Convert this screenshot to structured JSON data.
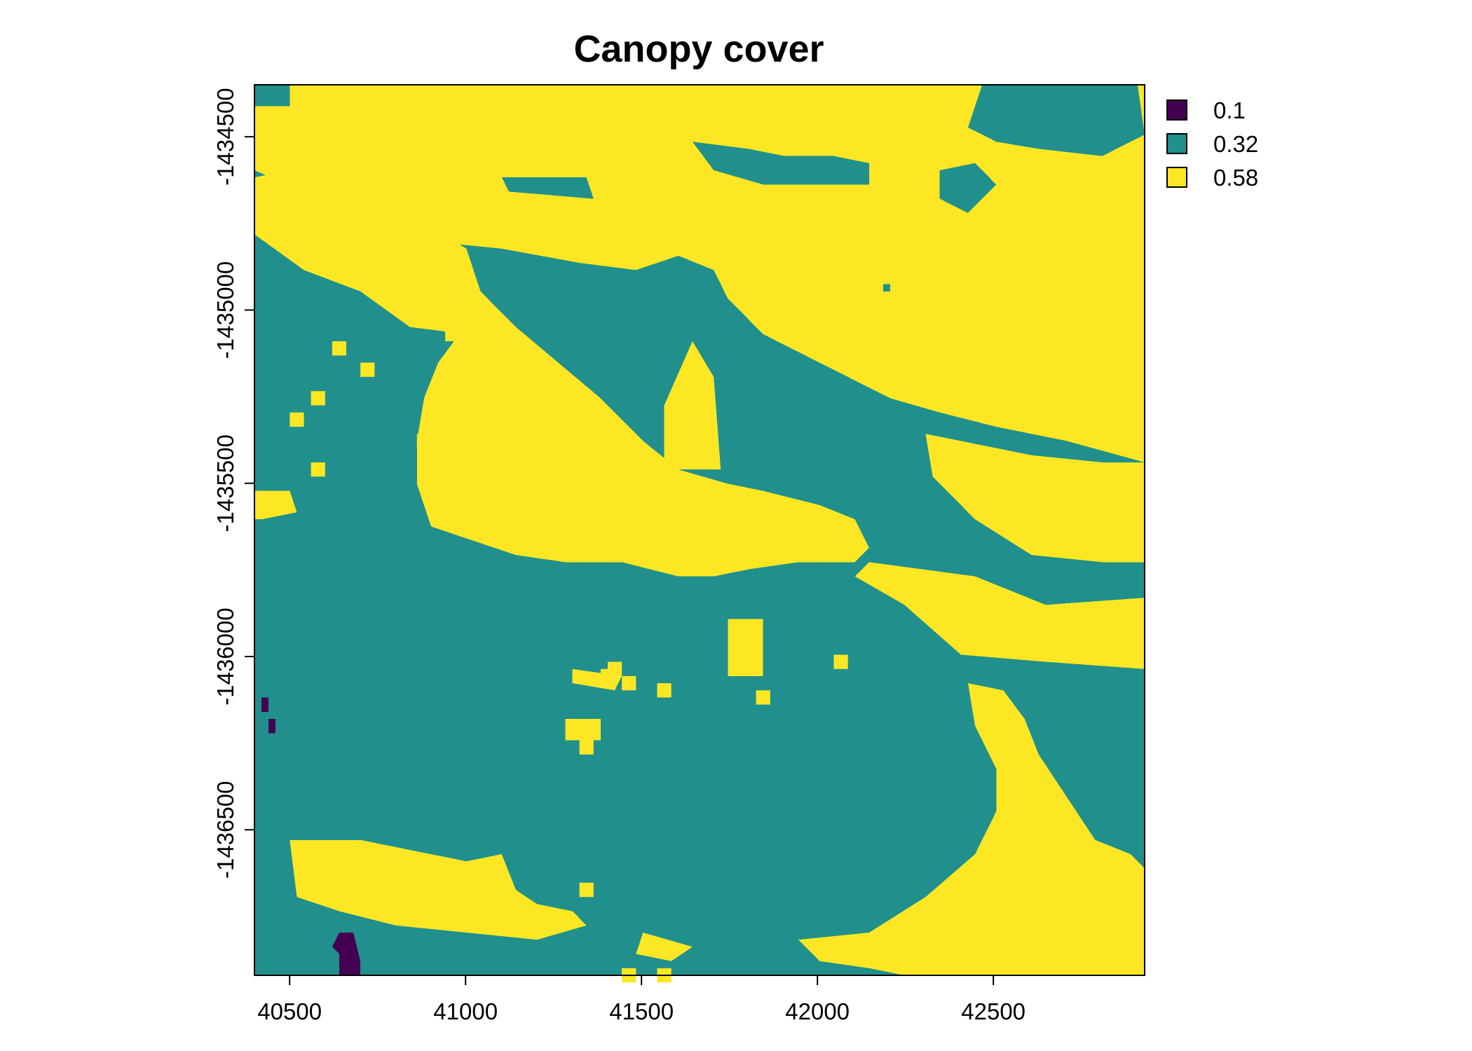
{
  "chart_data": {
    "type": "heatmap",
    "title": "Canopy cover",
    "xlabel": "",
    "ylabel": "",
    "xlim": [
      40400,
      42930
    ],
    "ylim": [
      -1436920,
      -1434350
    ],
    "x_ticks": [
      40500,
      41000,
      41500,
      42000,
      42500
    ],
    "y_ticks": [
      -1434500,
      -1435000,
      -1435500,
      -1436000,
      -1436500
    ],
    "x_tick_labels": [
      "40500",
      "41000",
      "41500",
      "42000",
      "42500"
    ],
    "y_tick_labels": [
      "-1434500",
      "-1435000",
      "-1435500",
      "-1436000",
      "-1436500"
    ],
    "grid": false,
    "legend_position": "top-right, outside plot",
    "classes": [
      {
        "value": 0.1,
        "label": "0.1",
        "color": "#440154"
      },
      {
        "value": 0.32,
        "label": "0.32",
        "color": "#21908C"
      },
      {
        "value": 0.58,
        "label": "0.58",
        "color": "#FDE725"
      }
    ],
    "grid_cells": {
      "ncols": 126,
      "nrows": 125
    },
    "regions_058": [
      [
        [
          40400,
          -1434350
        ],
        [
          40800,
          -1434350
        ],
        [
          41400,
          -1434350
        ],
        [
          42050,
          -1434350
        ],
        [
          42400,
          -1434350
        ],
        [
          42930,
          -1434350
        ],
        [
          42930,
          -1435440
        ],
        [
          42700,
          -1435380
        ],
        [
          42500,
          -1435330
        ],
        [
          42350,
          -1435300
        ],
        [
          42200,
          -1435250
        ],
        [
          42000,
          -1435150
        ],
        [
          41850,
          -1435070
        ],
        [
          41750,
          -1434960
        ],
        [
          41700,
          -1434880
        ],
        [
          41600,
          -1434850
        ],
        [
          41480,
          -1434890
        ],
        [
          41330,
          -1434860
        ],
        [
          41100,
          -1434830
        ],
        [
          40900,
          -1434800
        ],
        [
          40700,
          -1434720
        ],
        [
          40550,
          -1434650
        ],
        [
          40400,
          -1434600
        ]
      ],
      [
        [
          40500,
          -1434600
        ],
        [
          40800,
          -1434700
        ],
        [
          41000,
          -1434820
        ],
        [
          41050,
          -1434950
        ],
        [
          41000,
          -1435060
        ],
        [
          40850,
          -1435050
        ],
        [
          40700,
          -1434950
        ],
        [
          40550,
          -1434880
        ],
        [
          40400,
          -1434780
        ],
        [
          40400,
          -1434620
        ]
      ],
      [
        [
          41050,
          -1434950
        ],
        [
          41150,
          -1435040
        ],
        [
          41270,
          -1435150
        ],
        [
          41380,
          -1435250
        ],
        [
          41500,
          -1435370
        ],
        [
          41600,
          -1435450
        ],
        [
          41750,
          -1435500
        ],
        [
          41850,
          -1435520
        ],
        [
          42000,
          -1435560
        ],
        [
          42100,
          -1435600
        ],
        [
          42150,
          -1435680
        ],
        [
          42100,
          -1435720
        ],
        [
          41950,
          -1435720
        ],
        [
          41800,
          -1435750
        ],
        [
          41700,
          -1435760
        ],
        [
          41600,
          -1435760
        ],
        [
          41450,
          -1435730
        ],
        [
          41280,
          -1435720
        ],
        [
          41150,
          -1435700
        ],
        [
          41020,
          -1435660
        ],
        [
          40900,
          -1435620
        ],
        [
          40870,
          -1435500
        ],
        [
          40870,
          -1435380
        ],
        [
          40880,
          -1435260
        ],
        [
          40930,
          -1435150
        ],
        [
          40990,
          -1435060
        ]
      ],
      [
        [
          41560,
          -1435450
        ],
        [
          41720,
          -1435450
        ],
        [
          41700,
          -1435200
        ],
        [
          41650,
          -1435100
        ],
        [
          41560,
          -1435280
        ]
      ],
      [
        [
          42150,
          -1435720
        ],
        [
          42450,
          -1435770
        ],
        [
          42650,
          -1435860
        ],
        [
          42930,
          -1435840
        ],
        [
          42930,
          -1436030
        ],
        [
          42650,
          -1436020
        ],
        [
          42400,
          -1435990
        ],
        [
          42250,
          -1435850
        ],
        [
          42100,
          -1435760
        ]
      ],
      [
        [
          42300,
          -1435350
        ],
        [
          42600,
          -1435420
        ],
        [
          42800,
          -1435440
        ],
        [
          42930,
          -1435440
        ],
        [
          42930,
          -1435720
        ],
        [
          42800,
          -1435720
        ],
        [
          42600,
          -1435700
        ],
        [
          42450,
          -1435600
        ],
        [
          42320,
          -1435480
        ]
      ],
      [
        [
          42430,
          -1436070
        ],
        [
          42520,
          -1436100
        ],
        [
          42580,
          -1436180
        ],
        [
          42620,
          -1436280
        ],
        [
          42700,
          -1436400
        ],
        [
          42780,
          -1436520
        ],
        [
          42880,
          -1436580
        ],
        [
          42930,
          -1436620
        ],
        [
          42930,
          -1436920
        ],
        [
          42250,
          -1436920
        ],
        [
          42150,
          -1436900
        ],
        [
          42000,
          -1436880
        ],
        [
          41950,
          -1436820
        ],
        [
          42150,
          -1436790
        ],
        [
          42300,
          -1436690
        ],
        [
          42450,
          -1436580
        ],
        [
          42500,
          -1436450
        ],
        [
          42500,
          -1436320
        ],
        [
          42450,
          -1436200
        ]
      ],
      [
        [
          40500,
          -1436520
        ],
        [
          40700,
          -1436520
        ],
        [
          40800,
          -1436560
        ],
        [
          41000,
          -1436590
        ],
        [
          41100,
          -1436580
        ],
        [
          41140,
          -1436670
        ],
        [
          41200,
          -1436720
        ],
        [
          41300,
          -1436740
        ],
        [
          41350,
          -1436780
        ],
        [
          41200,
          -1436820
        ],
        [
          41000,
          -1436790
        ],
        [
          40800,
          -1436770
        ],
        [
          40650,
          -1436740
        ],
        [
          40520,
          -1436700
        ]
      ],
      [
        [
          40400,
          -1435530
        ],
        [
          40500,
          -1435530
        ],
        [
          40520,
          -1435580
        ],
        [
          40420,
          -1435610
        ],
        [
          40400,
          -1435600
        ]
      ],
      [
        [
          41300,
          -1436030
        ],
        [
          41450,
          -1436050
        ],
        [
          41420,
          -1436090
        ],
        [
          41310,
          -1436080
        ]
      ],
      [
        [
          41750,
          -1435900
        ],
        [
          41850,
          -1435900
        ],
        [
          41850,
          -1436060
        ],
        [
          41750,
          -1436060
        ]
      ],
      [
        [
          41290,
          -1436180
        ],
        [
          41380,
          -1436180
        ],
        [
          41380,
          -1436250
        ],
        [
          41290,
          -1436250
        ]
      ],
      [
        [
          41500,
          -1436800
        ],
        [
          41650,
          -1436830
        ],
        [
          41580,
          -1436870
        ],
        [
          41480,
          -1436850
        ]
      ]
    ],
    "regions_032": [
      [
        [
          40400,
          -1434350
        ],
        [
          40500,
          -1434350
        ],
        [
          40500,
          -1434420
        ],
        [
          40400,
          -1434420
        ]
      ],
      [
        [
          42460,
          -1434350
        ],
        [
          42900,
          -1434350
        ],
        [
          42930,
          -1434500
        ],
        [
          42800,
          -1434560
        ],
        [
          42620,
          -1434540
        ],
        [
          42500,
          -1434520
        ],
        [
          42430,
          -1434480
        ]
      ],
      [
        [
          41650,
          -1434520
        ],
        [
          41800,
          -1434530
        ],
        [
          41900,
          -1434560
        ],
        [
          42050,
          -1434560
        ],
        [
          42150,
          -1434580
        ],
        [
          42150,
          -1434640
        ],
        [
          42000,
          -1434640
        ],
        [
          41850,
          -1434630
        ],
        [
          41700,
          -1434600
        ]
      ],
      [
        [
          42350,
          -1434600
        ],
        [
          42450,
          -1434580
        ],
        [
          42500,
          -1434640
        ],
        [
          42420,
          -1434720
        ],
        [
          42350,
          -1434680
        ]
      ],
      [
        [
          41100,
          -1434610
        ],
        [
          41350,
          -1434620
        ],
        [
          41370,
          -1434670
        ],
        [
          41120,
          -1434660
        ]
      ],
      [
        [
          41400,
          -1434990
        ],
        [
          41500,
          -1434920
        ],
        [
          41580,
          -1434940
        ],
        [
          41600,
          -1435050
        ],
        [
          41540,
          -1435080
        ],
        [
          41450,
          -1435060
        ]
      ],
      [
        [
          42180,
          -1434920
        ],
        [
          42210,
          -1434920
        ],
        [
          42210,
          -1434940
        ],
        [
          42180,
          -1434940
        ]
      ]
    ],
    "regions_01": [
      [
        [
          40430,
          -1436120
        ],
        [
          40450,
          -1436120
        ],
        [
          40450,
          -1436150
        ],
        [
          40430,
          -1436150
        ]
      ],
      [
        [
          40450,
          -1436180
        ],
        [
          40470,
          -1436180
        ],
        [
          40470,
          -1436230
        ],
        [
          40450,
          -1436230
        ]
      ],
      [
        [
          40640,
          -1436790
        ],
        [
          40680,
          -1436790
        ],
        [
          40700,
          -1436880
        ],
        [
          40700,
          -1436920
        ],
        [
          40650,
          -1436920
        ],
        [
          40650,
          -1436860
        ],
        [
          40630,
          -1436830
        ]
      ]
    ],
    "pixel_fill_058": [
      [
        40380,
        -1434430
      ],
      [
        40550,
        -1434400
      ],
      [
        40890,
        -1434540
      ],
      [
        40900,
        -1434540
      ],
      [
        40780,
        -1434710
      ],
      [
        40620,
        -1435090
      ],
      [
        40700,
        -1435160
      ],
      [
        40870,
        -1435360
      ],
      [
        40950,
        -1435040
      ],
      [
        40990,
        -1435120
      ],
      [
        40570,
        -1435240
      ],
      [
        40510,
        -1435300
      ],
      [
        40560,
        -1435440
      ],
      [
        40420,
        -1435550
      ],
      [
        40690,
        -1436550
      ],
      [
        41390,
        -1436040
      ],
      [
        41410,
        -1436020
      ],
      [
        41550,
        -1436080
      ],
      [
        41450,
        -1436060
      ],
      [
        41320,
        -1436240
      ],
      [
        41320,
        -1436650
      ],
      [
        41440,
        -1436890
      ],
      [
        41550,
        -1436890
      ],
      [
        41830,
        -1436090
      ],
      [
        41780,
        -1436010
      ],
      [
        42040,
        -1435990
      ],
      [
        42270,
        -1436880
      ],
      [
        42350,
        -1436800
      ],
      [
        42580,
        -1436740
      ],
      [
        42600,
        -1436790
      ]
    ]
  }
}
